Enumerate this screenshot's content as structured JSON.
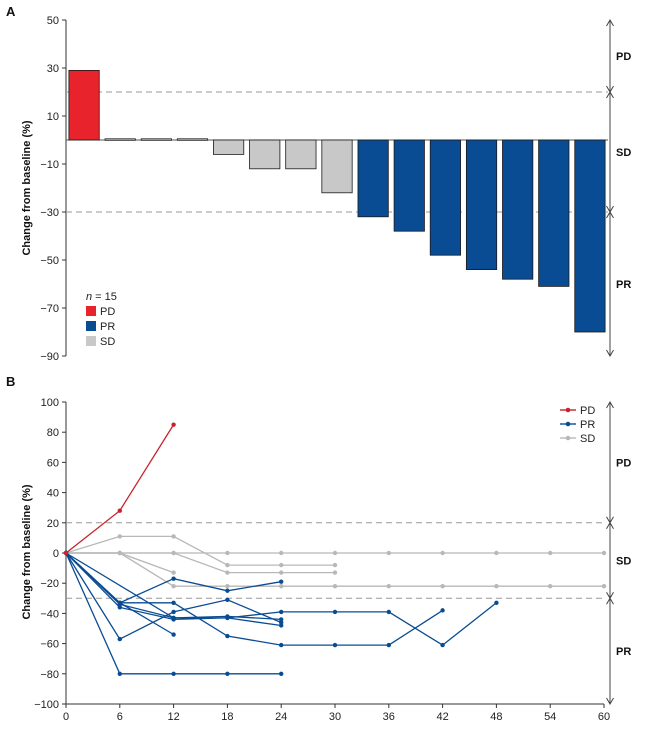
{
  "chart_data": [
    {
      "panel": "A",
      "type": "bar",
      "ylabel": "Change from baseline (%)",
      "ylim": [
        -90,
        50
      ],
      "yticks": [
        "50",
        "30",
        "10",
        "−10",
        "−30",
        "−50",
        "−70",
        "−90"
      ],
      "ytick_values": [
        50,
        30,
        10,
        -10,
        -30,
        -50,
        -70,
        -90
      ],
      "thresholds": [
        20,
        -30
      ],
      "zones": [
        {
          "label": "PD",
          "from": 20,
          "to": 50
        },
        {
          "label": "SD",
          "from": -30,
          "to": 20
        },
        {
          "label": "PR",
          "from": -90,
          "to": -30
        }
      ],
      "values": [
        29,
        0.5,
        0.5,
        0.5,
        -6,
        -12,
        -12,
        -22,
        -32,
        -38,
        -48,
        -54,
        -58,
        -61,
        -80
      ],
      "categories_status": [
        "PD",
        "SD",
        "SD",
        "SD",
        "SD",
        "SD",
        "SD",
        "SD",
        "PR",
        "PR",
        "PR",
        "PR",
        "PR",
        "PR",
        "PR"
      ],
      "legend": {
        "title_italic": "n",
        "title_rest": " = 15",
        "entries": [
          {
            "label": "PD",
            "color": "#e8232b"
          },
          {
            "label": "PR",
            "color": "#0a4c93"
          },
          {
            "label": "SD",
            "color": "#c8c8c8"
          }
        ]
      }
    },
    {
      "panel": "B",
      "type": "line",
      "ylabel": "Change from baseline (%)",
      "ylim": [
        -100,
        100
      ],
      "xlim": [
        0,
        60
      ],
      "yticks": [
        "100",
        "80",
        "60",
        "40",
        "20",
        "0",
        "−20",
        "−40",
        "−60",
        "−80",
        "−100"
      ],
      "ytick_values": [
        100,
        80,
        60,
        40,
        20,
        0,
        -20,
        -40,
        -60,
        -80,
        -100
      ],
      "xticks": [
        "0",
        "6",
        "12",
        "18",
        "24",
        "30",
        "36",
        "42",
        "48",
        "54",
        "60"
      ],
      "xtick_values": [
        0,
        6,
        12,
        18,
        24,
        30,
        36,
        42,
        48,
        54,
        60
      ],
      "thresholds": [
        20,
        -30
      ],
      "zones": [
        {
          "label": "PD",
          "from": 20,
          "to": 100
        },
        {
          "label": "SD",
          "from": -30,
          "to": 20
        },
        {
          "label": "PR",
          "from": -100,
          "to": -30
        }
      ],
      "legend": [
        {
          "label": "PD",
          "color": "#c8232b"
        },
        {
          "label": "PR",
          "color": "#0a4c93"
        },
        {
          "label": "SD",
          "color": "#b8b8b8"
        }
      ],
      "series": [
        {
          "status": "PD",
          "x": [
            0,
            6,
            12
          ],
          "y": [
            0,
            28,
            85
          ]
        },
        {
          "status": "SD",
          "x": [
            0,
            6,
            12,
            18,
            24,
            30,
            36,
            42,
            48,
            54,
            60
          ],
          "y": [
            0,
            0,
            0,
            0,
            0,
            0,
            0,
            0,
            0,
            0,
            0
          ]
        },
        {
          "status": "SD",
          "x": [
            0,
            6,
            12,
            18,
            24,
            30
          ],
          "y": [
            0,
            11,
            11,
            -8,
            -8,
            -8
          ]
        },
        {
          "status": "SD",
          "x": [
            0,
            6,
            12,
            18,
            24,
            30
          ],
          "y": [
            0,
            0,
            0,
            -13,
            -13,
            -13
          ]
        },
        {
          "status": "SD",
          "x": [
            0,
            6,
            12,
            18,
            24,
            30,
            36,
            42,
            48,
            54,
            60
          ],
          "y": [
            0,
            0,
            -22,
            -22,
            -22,
            -22,
            -22,
            -22,
            -22,
            -22,
            -22
          ]
        },
        {
          "status": "SD",
          "x": [
            0,
            6,
            12
          ],
          "y": [
            0,
            0,
            -13
          ]
        },
        {
          "status": "PR",
          "x": [
            0,
            6,
            12,
            18,
            24
          ],
          "y": [
            0,
            -33,
            -17,
            -25,
            -19
          ]
        },
        {
          "status": "PR",
          "x": [
            0,
            6,
            12,
            18,
            24
          ],
          "y": [
            0,
            -34,
            -43,
            -42,
            -44
          ]
        },
        {
          "status": "PR",
          "x": [
            0,
            6,
            12,
            18,
            24
          ],
          "y": [
            0,
            -36,
            -44,
            -43,
            -48
          ]
        },
        {
          "status": "PR",
          "x": [
            0,
            6,
            12,
            18,
            24
          ],
          "y": [
            0,
            -57,
            -39,
            -31,
            -46
          ]
        },
        {
          "status": "PR",
          "x": [
            0,
            6,
            12
          ],
          "y": [
            0,
            -33,
            -54
          ]
        },
        {
          "status": "PR",
          "x": [
            0,
            6,
            12,
            18,
            24,
            30,
            36,
            42
          ],
          "y": [
            0,
            -33,
            -33,
            -55,
            -61,
            -61,
            -61,
            -38
          ]
        },
        {
          "status": "PR",
          "x": [
            0,
            12,
            18,
            24,
            30,
            36,
            42,
            48
          ],
          "y": [
            0,
            -43,
            -43,
            -39,
            -39,
            -39,
            -61,
            -33
          ]
        },
        {
          "status": "PR",
          "x": [
            0,
            6,
            12,
            18,
            24
          ],
          "y": [
            0,
            -80,
            -80,
            -80,
            -80
          ]
        }
      ]
    }
  ]
}
